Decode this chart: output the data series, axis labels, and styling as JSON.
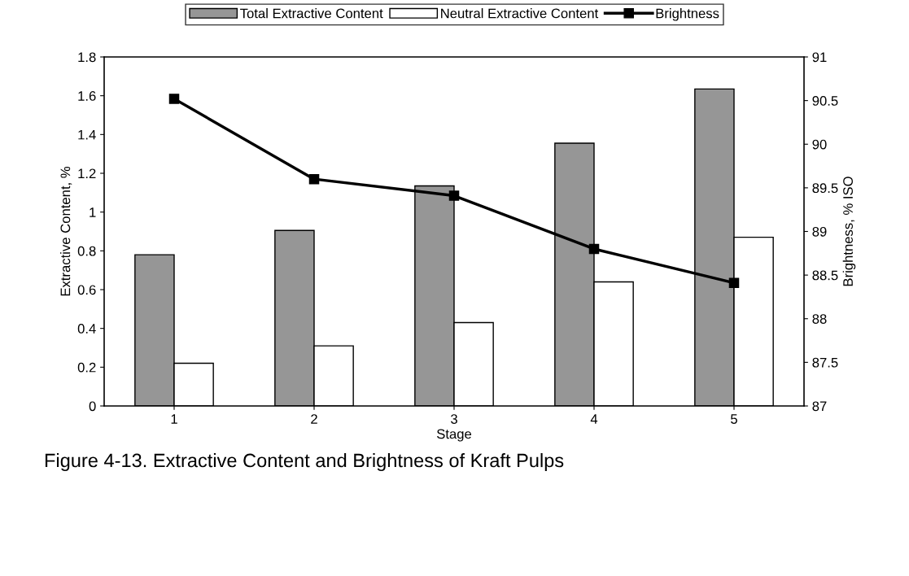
{
  "chart_data": {
    "type": "bar",
    "categories": [
      "1",
      "2",
      "3",
      "4",
      "5"
    ],
    "xlabel": "Stage",
    "ylabel": "Extractive Content, %",
    "y2label": "Brightness, % ISO",
    "series": [
      {
        "name": "Total Extractive Content",
        "color": "#969696",
        "values": [
          0.78,
          0.905,
          1.135,
          1.355,
          1.635
        ]
      },
      {
        "name": "Neutral Extractive Content",
        "color": "#ffffff",
        "values": [
          0.22,
          0.31,
          0.43,
          0.64,
          0.87
        ]
      },
      {
        "name": "Brightness",
        "type": "line",
        "axis": "y2",
        "color": "#000000",
        "marker": "square",
        "values": [
          90.52,
          89.6,
          89.41,
          88.8,
          88.41
        ]
      }
    ],
    "ylim": [
      0,
      1.8
    ],
    "yticks": [
      0,
      0.2,
      0.4,
      0.6,
      0.8,
      1,
      1.2,
      1.4,
      1.6,
      1.8
    ],
    "y2lim": [
      87,
      91
    ],
    "y2ticks": [
      87,
      87.5,
      88,
      88.5,
      89,
      89.5,
      90,
      90.5,
      91
    ],
    "legend": "top",
    "grid": false,
    "annotations": [
      "Figure 4-13. Extractive Content and Brightness of Kraft Pulps"
    ]
  }
}
